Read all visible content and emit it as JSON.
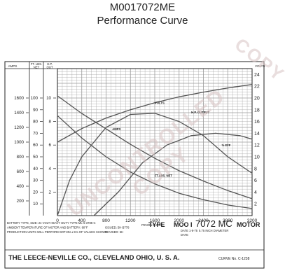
{
  "header": {
    "title": "M0017072ME",
    "subtitle": "Performance Curve"
  },
  "watermark": {
    "text": "UNCONTROLLED COPY",
    "corner_text": "COPY"
  },
  "colors": {
    "grid": "#9a9a9a",
    "curve": "#555555",
    "ink": "#222222",
    "paper": "#ffffff"
  },
  "chart_data": {
    "type": "line",
    "xlabel": "PINION R.P.M.",
    "x_ticks": [
      "0",
      "400",
      "800",
      "1200",
      "1600",
      "2000",
      "2400",
      "2800",
      "3200"
    ],
    "xlim": [
      0,
      3200
    ],
    "left_axes": {
      "amps": {
        "label": "AMPS",
        "ticks": [
          "200",
          "400",
          "600",
          "800",
          "1000",
          "1200",
          "1400",
          "1600"
        ],
        "range": [
          0,
          2000
        ]
      },
      "ft_lbs": {
        "label": "FT. LBS. NET",
        "ticks": [
          "10",
          "20",
          "30",
          "40",
          "50",
          "60",
          "70",
          "80",
          "90",
          "100"
        ],
        "range": [
          0,
          125
        ]
      },
      "hp": {
        "label": "H.P. OUT",
        "ticks": [
          "2",
          "4",
          "6",
          "8",
          "10"
        ],
        "range": [
          0,
          12.5
        ]
      }
    },
    "right_axis": {
      "label": "VOLTS",
      "ticks": [
        "2",
        "4",
        "6",
        "8",
        "10",
        "12",
        "14",
        "16",
        "18",
        "20",
        "22",
        "24"
      ],
      "range": [
        0,
        25
      ]
    },
    "series": [
      {
        "name": "VOLTS",
        "points": [
          [
            0,
            12.5
          ],
          [
            400,
            14.8
          ],
          [
            800,
            16.6
          ],
          [
            1200,
            18.0
          ],
          [
            1600,
            19.2
          ],
          [
            2000,
            20.2
          ],
          [
            2400,
            21.0
          ],
          [
            2800,
            21.7
          ],
          [
            3200,
            22.3
          ]
        ]
      },
      {
        "name": "AMPS",
        "points": [
          [
            0,
            1630
          ],
          [
            400,
            1390
          ],
          [
            800,
            1180
          ],
          [
            1200,
            970
          ],
          [
            1600,
            780
          ],
          [
            2000,
            610
          ],
          [
            2400,
            470
          ],
          [
            2800,
            340
          ],
          [
            3200,
            230
          ]
        ]
      },
      {
        "name": "FT.LBS. NET",
        "points": [
          [
            0,
            85
          ],
          [
            400,
            66
          ],
          [
            800,
            50
          ],
          [
            1200,
            37
          ],
          [
            1600,
            27
          ],
          [
            2000,
            19
          ],
          [
            2400,
            13.5
          ],
          [
            2800,
            9
          ],
          [
            3200,
            6
          ]
        ]
      },
      {
        "name": "H.P. OUTPUT",
        "points": [
          [
            0,
            0
          ],
          [
            200,
            3.0
          ],
          [
            400,
            5.0
          ],
          [
            800,
            7.5
          ],
          [
            1200,
            8.6
          ],
          [
            1600,
            8.7
          ],
          [
            2000,
            8.0
          ],
          [
            2400,
            6.8
          ],
          [
            2800,
            5.0
          ],
          [
            3200,
            3.6
          ]
        ]
      },
      {
        "name": "% EFF",
        "points": [
          [
            600,
            0
          ],
          [
            1000,
            2
          ],
          [
            1400,
            4.5
          ],
          [
            1800,
            6
          ],
          [
            2200,
            6.8
          ],
          [
            2600,
            7
          ],
          [
            3000,
            6.8
          ],
          [
            3200,
            6.5
          ]
        ]
      }
    ],
    "curve_labels": [
      {
        "text": "VOLTS",
        "at": [
          1600,
          19.0
        ],
        "axis": "right"
      },
      {
        "text": "AMPS",
        "at": [
          900,
          1160
        ],
        "axis": "amps"
      },
      {
        "text": "H.P. OUTPUT",
        "at": [
          2200,
          8.7
        ],
        "axis": "hp"
      },
      {
        "text": "FT.LBS. NET",
        "at": [
          1600,
          33
        ],
        "axis": "ft_lbs"
      },
      {
        "text": "% EFF",
        "at": [
          2700,
          5.9
        ],
        "axis": "hp"
      }
    ],
    "info_lines": [
      "BATTERY TYPE, SIZE: 24 VOLT HEAVY DUTY TYPE ML-5-3785-C",
      "AMBIENT TEMPERATURE OF MOTOR AND BATTERY: 80°F",
      "PRODUCTION UNITS WILL PERFORM WITHIN ± 5% OF VALUES SHOWN"
    ],
    "issued": "ISSUED: 5H-B778",
    "revised": "REVISED: 5H",
    "type_label": "TYPE",
    "model_label": "MOO I",
    "model_number": "7072 MC",
    "motor_label": "MOTOR",
    "date_label": "DATE 1-8-75",
    "date2_label": "DATE",
    "diameter_note": "5.75 INCH DIAMETER",
    "company": "THE LEECE-NEVILLE CO., CLEVELAND OHIO, U. S. A.",
    "curve_no": "CURVE No. C-1238"
  }
}
